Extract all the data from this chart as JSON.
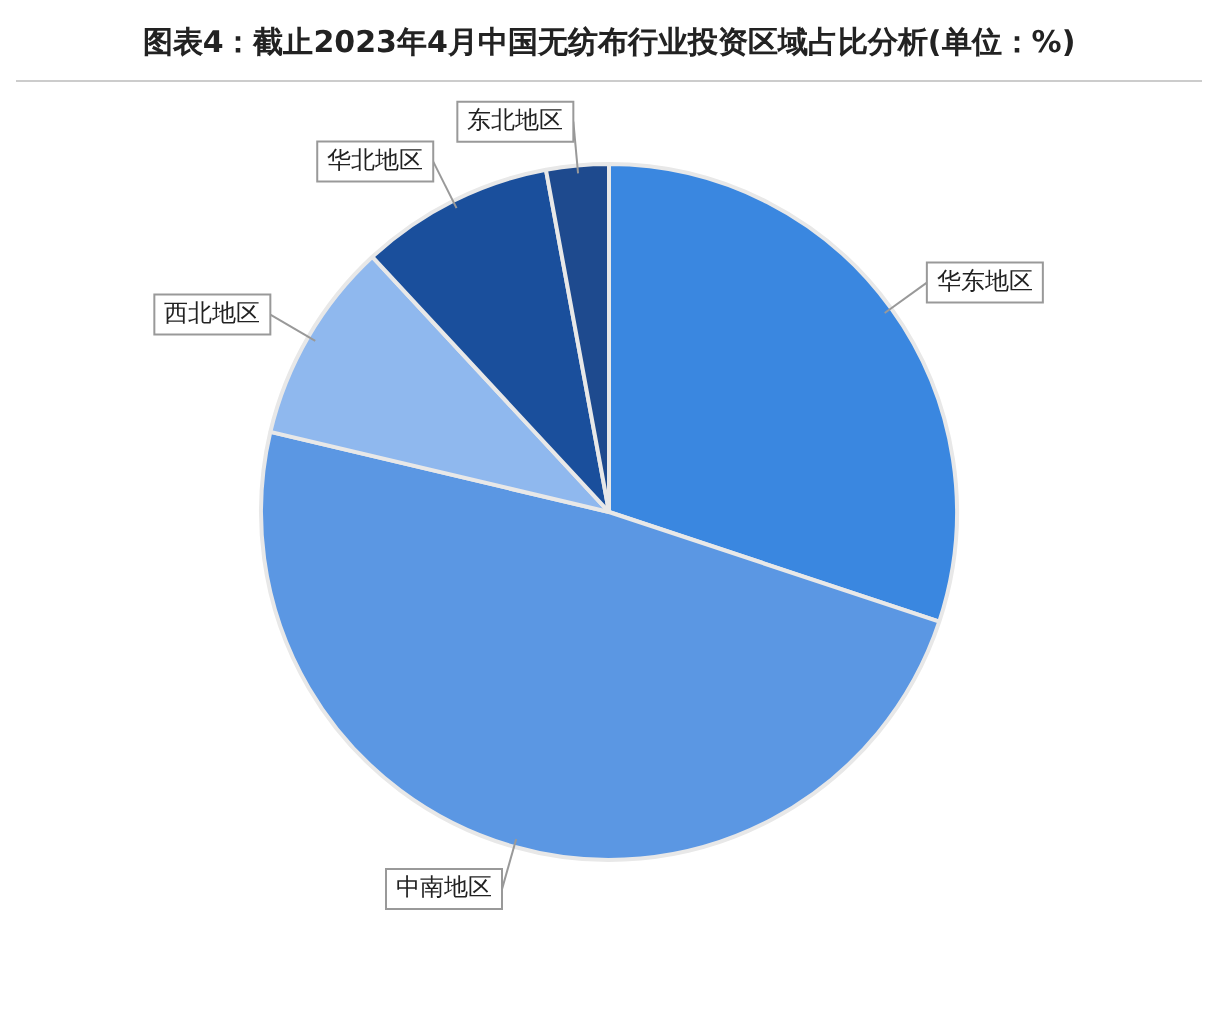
{
  "chart_data": {
    "type": "pie",
    "title": "图表4：截止2023年4月中国无纺布行业投资区域占比分析(单位：%)",
    "categories": [
      "华东地区",
      "中南地区",
      "西北地区",
      "华北地区",
      "东北地区"
    ],
    "values": [
      30.1,
      48.6,
      9.4,
      9.0,
      2.9
    ],
    "colors": [
      "#3a87e0",
      "#5b97e3",
      "#8fb8ee",
      "#1a4f9c",
      "#1e4a8e"
    ],
    "legend": false
  }
}
